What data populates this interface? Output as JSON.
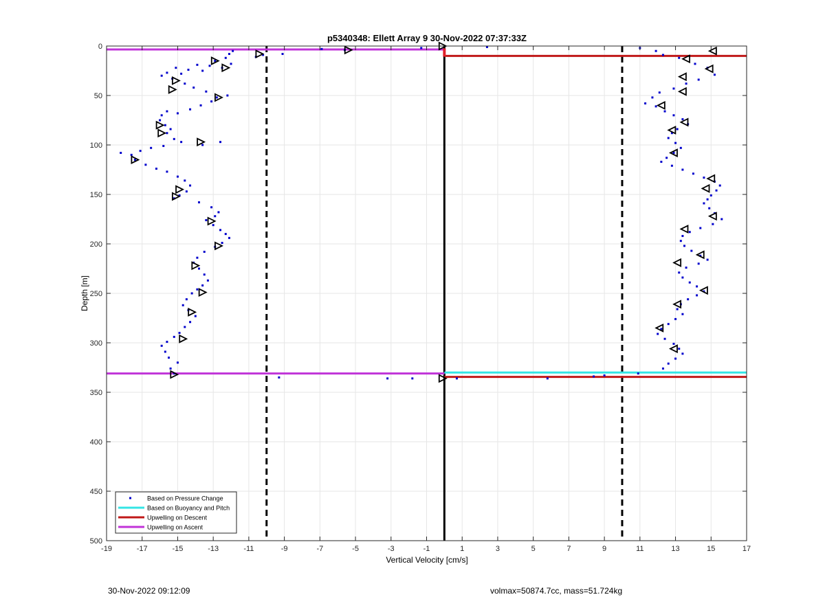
{
  "chart_data": {
    "type": "scatter",
    "title": "p5340348: Ellett Array 9 30-Nov-2022 07:37:33Z",
    "xlabel": "Vertical Velocity [cm/s]",
    "ylabel": "Depth [m]",
    "xlim": [
      -19,
      17
    ],
    "ylim": [
      500,
      0
    ],
    "y_reversed": true,
    "grid": true,
    "xticks": [
      -19,
      -17,
      -15,
      -13,
      -11,
      -9,
      -7,
      -5,
      -3,
      -1,
      1,
      3,
      5,
      7,
      9,
      11,
      13,
      15,
      17
    ],
    "yticks": [
      0,
      50,
      100,
      150,
      200,
      250,
      300,
      350,
      400,
      450,
      500
    ],
    "legend_position": "bottom-left",
    "legend": [
      {
        "label": "Based on Pressure Change",
        "color": "#0000cc",
        "style": "point"
      },
      {
        "label": "Based on Buoyancy and Pitch",
        "color": "#33e5e5",
        "style": "line"
      },
      {
        "label": "Upwelling on Descent",
        "color": "#c01818",
        "style": "line"
      },
      {
        "label": "Upwelling on Ascent",
        "color": "#c033d8",
        "style": "line"
      }
    ],
    "reference_lines": {
      "dashed_vertical_x": [
        -10,
        10
      ],
      "solid_vertical_x": 0
    },
    "series": [
      {
        "name": "Based on Pressure Change",
        "type": "scatter",
        "color": "#0000cc",
        "points": [
          [
            -11.9,
            5
          ],
          [
            -12.1,
            8
          ],
          [
            -12.3,
            12
          ],
          [
            -12.0,
            18
          ],
          [
            -12.5,
            22
          ],
          [
            -12.9,
            15
          ],
          [
            -13.2,
            20
          ],
          [
            -13.6,
            25
          ],
          [
            -13.9,
            19
          ],
          [
            -14.4,
            24
          ],
          [
            -14.8,
            28
          ],
          [
            -15.1,
            22
          ],
          [
            -15.6,
            27
          ],
          [
            -15.9,
            30
          ],
          [
            -15.3,
            33
          ],
          [
            -14.6,
            38
          ],
          [
            -14.1,
            42
          ],
          [
            -13.4,
            46
          ],
          [
            -12.8,
            52
          ],
          [
            -12.2,
            50
          ],
          [
            -13.1,
            56
          ],
          [
            -13.7,
            60
          ],
          [
            -14.3,
            64
          ],
          [
            -15.0,
            68
          ],
          [
            -15.6,
            66
          ],
          [
            -15.9,
            70
          ],
          [
            -16.0,
            75
          ],
          [
            -15.7,
            80
          ],
          [
            -15.4,
            84
          ],
          [
            -15.6,
            88
          ],
          [
            -15.2,
            94
          ],
          [
            -14.8,
            97
          ],
          [
            -13.6,
            100
          ],
          [
            -12.6,
            97
          ],
          [
            -15.8,
            101
          ],
          [
            -16.5,
            103
          ],
          [
            -17.1,
            106
          ],
          [
            -17.6,
            110
          ],
          [
            -18.2,
            108
          ],
          [
            -17.4,
            115
          ],
          [
            -16.8,
            120
          ],
          [
            -16.2,
            124
          ],
          [
            -15.6,
            127
          ],
          [
            -15.0,
            132
          ],
          [
            -14.6,
            136
          ],
          [
            -14.3,
            141
          ],
          [
            -14.5,
            147
          ],
          [
            -14.9,
            151
          ],
          [
            -15.2,
            154
          ],
          [
            -13.8,
            158
          ],
          [
            -13.1,
            163
          ],
          [
            -12.7,
            168
          ],
          [
            -12.9,
            172
          ],
          [
            -13.4,
            176
          ],
          [
            -13.0,
            181
          ],
          [
            -12.6,
            186
          ],
          [
            -12.3,
            190
          ],
          [
            -12.1,
            194
          ],
          [
            -12.5,
            199
          ],
          [
            -12.9,
            203
          ],
          [
            -13.5,
            208
          ],
          [
            -13.9,
            214
          ],
          [
            -14.1,
            219
          ],
          [
            -13.8,
            225
          ],
          [
            -13.5,
            231
          ],
          [
            -13.3,
            237
          ],
          [
            -13.6,
            242
          ],
          [
            -13.9,
            246
          ],
          [
            -14.2,
            250
          ],
          [
            -14.5,
            256
          ],
          [
            -14.7,
            262
          ],
          [
            -14.4,
            267
          ],
          [
            -14.0,
            273
          ],
          [
            -14.3,
            279
          ],
          [
            -14.6,
            284
          ],
          [
            -14.9,
            290
          ],
          [
            -15.2,
            294
          ],
          [
            -15.6,
            299
          ],
          [
            -15.9,
            303
          ],
          [
            -15.7,
            309
          ],
          [
            -15.5,
            315
          ],
          [
            -15.0,
            320
          ],
          [
            -15.4,
            326
          ],
          [
            -15.2,
            331
          ],
          [
            -10.6,
            11
          ],
          [
            -10.2,
            9
          ],
          [
            -9.1,
            8
          ],
          [
            -5.6,
            4
          ],
          [
            -6.9,
            3
          ],
          [
            -1.3,
            2
          ],
          [
            2.4,
            1
          ],
          [
            -9.3,
            335
          ],
          [
            -3.2,
            336
          ],
          [
            -1.8,
            336
          ],
          [
            0.7,
            336
          ],
          [
            5.8,
            336
          ],
          [
            8.4,
            334
          ],
          [
            9.0,
            333
          ],
          [
            10.9,
            331
          ],
          [
            11.0,
            2
          ],
          [
            11.9,
            5
          ],
          [
            12.3,
            9
          ],
          [
            13.2,
            12
          ],
          [
            14.1,
            18
          ],
          [
            14.8,
            22
          ],
          [
            15.2,
            29
          ],
          [
            14.3,
            34
          ],
          [
            13.6,
            38
          ],
          [
            12.9,
            43
          ],
          [
            12.1,
            47
          ],
          [
            11.7,
            52
          ],
          [
            11.3,
            58
          ],
          [
            11.9,
            61
          ],
          [
            12.4,
            66
          ],
          [
            12.9,
            70
          ],
          [
            13.4,
            74
          ],
          [
            13.7,
            79
          ],
          [
            13.1,
            84
          ],
          [
            12.8,
            88
          ],
          [
            12.6,
            93
          ],
          [
            13.0,
            98
          ],
          [
            13.3,
            103
          ],
          [
            12.9,
            108
          ],
          [
            12.5,
            113
          ],
          [
            12.2,
            117
          ],
          [
            12.8,
            121
          ],
          [
            13.4,
            125
          ],
          [
            14.0,
            129
          ],
          [
            14.6,
            133
          ],
          [
            15.2,
            137
          ],
          [
            15.5,
            141
          ],
          [
            15.3,
            146
          ],
          [
            15.0,
            151
          ],
          [
            14.8,
            155
          ],
          [
            14.6,
            159
          ],
          [
            14.9,
            164
          ],
          [
            15.2,
            169
          ],
          [
            15.6,
            175
          ],
          [
            15.1,
            180
          ],
          [
            14.4,
            184
          ],
          [
            13.8,
            188
          ],
          [
            13.4,
            192
          ],
          [
            13.3,
            197
          ],
          [
            13.5,
            202
          ],
          [
            13.9,
            207
          ],
          [
            14.4,
            212
          ],
          [
            14.8,
            216
          ],
          [
            14.3,
            220
          ],
          [
            13.6,
            224
          ],
          [
            13.2,
            229
          ],
          [
            13.4,
            234
          ],
          [
            13.8,
            239
          ],
          [
            14.2,
            243
          ],
          [
            14.6,
            248
          ],
          [
            14.2,
            252
          ],
          [
            13.7,
            256
          ],
          [
            13.3,
            261
          ],
          [
            13.1,
            266
          ],
          [
            13.4,
            271
          ],
          [
            13.0,
            276
          ],
          [
            12.6,
            281
          ],
          [
            12.2,
            286
          ],
          [
            12.0,
            291
          ],
          [
            12.4,
            296
          ],
          [
            12.9,
            301
          ],
          [
            13.2,
            306
          ],
          [
            13.4,
            311
          ],
          [
            13.0,
            316
          ],
          [
            12.6,
            321
          ],
          [
            12.3,
            326
          ]
        ]
      },
      {
        "name": "Upwelling on Descent",
        "type": "segments",
        "color": "#c01818",
        "segments": [
          {
            "x": [
              0,
              17
            ],
            "y": [
              10,
              10
            ]
          },
          {
            "x": [
              0,
              17
            ],
            "y": [
              334.5,
              334.5
            ]
          }
        ]
      },
      {
        "name": "Based on Buoyancy and Pitch",
        "type": "segments",
        "color": "#33e5e5",
        "segments": [
          {
            "x": [
              0,
              17
            ],
            "y": [
              330,
              330
            ]
          }
        ]
      },
      {
        "name": "Upwelling on Ascent",
        "type": "segments",
        "color": "#c033d8",
        "segments": [
          {
            "x": [
              -19,
              0
            ],
            "y": [
              3.5,
              3.5
            ]
          },
          {
            "x": [
              -19,
              0
            ],
            "y": [
              331,
              331
            ]
          }
        ]
      }
    ],
    "descent_markers": [
      [
        -10.4,
        8
      ],
      [
        -5.4,
        4
      ],
      [
        -0.1,
        0
      ],
      [
        -12.9,
        15
      ],
      [
        -12.3,
        22
      ],
      [
        -15.1,
        35
      ],
      [
        -15.3,
        44
      ],
      [
        -12.7,
        52
      ],
      [
        -16.0,
        80
      ],
      [
        -15.9,
        88
      ],
      [
        -13.7,
        97
      ],
      [
        -17.4,
        115
      ],
      [
        -14.9,
        145
      ],
      [
        -15.1,
        152
      ],
      [
        -13.1,
        177
      ],
      [
        -12.7,
        202
      ],
      [
        -14.0,
        222
      ],
      [
        -13.6,
        249
      ],
      [
        -14.2,
        269
      ],
      [
        -14.7,
        296
      ],
      [
        -15.2,
        332
      ],
      [
        -0.1,
        336
      ]
    ],
    "ascent_markers": [
      [
        15.1,
        5
      ],
      [
        13.6,
        13
      ],
      [
        14.9,
        23
      ],
      [
        13.4,
        31
      ],
      [
        13.4,
        46
      ],
      [
        12.2,
        60
      ],
      [
        13.5,
        77
      ],
      [
        12.8,
        85
      ],
      [
        12.9,
        108
      ],
      [
        15.0,
        134
      ],
      [
        14.7,
        144
      ],
      [
        15.1,
        172
      ],
      [
        13.5,
        185
      ],
      [
        14.4,
        211
      ],
      [
        13.1,
        219
      ],
      [
        14.6,
        247
      ],
      [
        13.1,
        261
      ],
      [
        12.1,
        285
      ],
      [
        12.9,
        306
      ]
    ]
  },
  "footer": {
    "timestamp": "30-Nov-2022 09:12:09",
    "info": "volmax=50874.7cc, mass=51.724kg"
  }
}
